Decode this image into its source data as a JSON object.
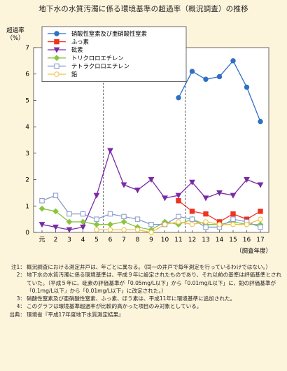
{
  "title": "地下水の水質汚濁に係る環境基準の超過率（概況調査）の推移",
  "chart_data": {
    "type": "line",
    "ylabel": "超過率\n（%）",
    "xlabel": "（調査年度）",
    "ylim": [
      0,
      7
    ],
    "yticks": [
      0,
      1,
      2,
      3,
      4,
      5,
      6,
      7
    ],
    "categories": [
      "元",
      "2",
      "3",
      "4",
      "5",
      "6",
      "7",
      "8",
      "9",
      "10",
      "11",
      "12",
      "13",
      "14",
      "15",
      "16",
      "17"
    ],
    "dashed_lines_after_category": [
      "5",
      "11"
    ],
    "grid": false,
    "legend_position": "top-right",
    "series": [
      {
        "name": "硝酸性窒素及び亜硝酸性窒素",
        "color": "#2f6fc4",
        "marker": "circle-filled",
        "values": [
          null,
          null,
          null,
          null,
          null,
          null,
          null,
          null,
          null,
          null,
          5.1,
          6.1,
          5.8,
          5.9,
          6.5,
          5.5,
          4.2
        ]
      },
      {
        "name": "ふっ素",
        "color": "#ee3322",
        "marker": "square-filled",
        "values": [
          null,
          null,
          null,
          null,
          null,
          null,
          null,
          null,
          null,
          null,
          1.2,
          0.8,
          0.7,
          0.4,
          0.7,
          0.5,
          0.8
        ]
      },
      {
        "name": "砒素",
        "color": "#7a2aa5",
        "marker": "triangle-down-filled",
        "values": [
          0.3,
          0.2,
          0.1,
          0.2,
          1.4,
          3.1,
          1.8,
          1.6,
          2.0,
          1.3,
          1.4,
          1.9,
          1.3,
          1.5,
          1.4,
          2.0,
          1.8
        ]
      },
      {
        "name": "トリクロロエチレン",
        "color": "#8bc53f",
        "marker": "diamond-filled",
        "values": [
          0.9,
          0.8,
          0.4,
          0.4,
          0.3,
          0.3,
          0.4,
          0.2,
          0.1,
          0.4,
          0.3,
          0.5,
          0.3,
          0.3,
          0.4,
          0.3,
          0.3
        ]
      },
      {
        "name": "テトラクロロエチレン",
        "color": "#8899cc",
        "marker": "square-open",
        "values": [
          1.2,
          1.4,
          0.7,
          0.7,
          0.5,
          0.7,
          0.6,
          0.5,
          0.3,
          0.3,
          0.6,
          0.5,
          0.2,
          0.2,
          0.5,
          0.4,
          0.2
        ]
      },
      {
        "name": "鉛",
        "color": "#f0c040",
        "marker": "circle-open",
        "values": [
          null,
          null,
          null,
          null,
          0.1,
          0.1,
          0.1,
          0.1,
          0.0,
          0.3,
          0.4,
          0.3,
          0.4,
          0.3,
          0.3,
          0.3,
          0.5
        ]
      }
    ]
  },
  "notes": [
    {
      "label": "注1：",
      "text": "概況調査における測定井戸は、年ごとに異なる。（同一の井戸で毎年測定を行っているわけではない。）"
    },
    {
      "label": "2：",
      "text": "地下水の水質汚濁に係る環境基準は、平成９年に設定されたものであり、それ以前の基準は評価基準とされていた。（平成５年に、砒素の評価基準が「0.05mg/L以下」から「0.01mg/L以下」に、鉛の評価基準が「0.1mg/L以下」から「0.01mg/L以下」に改定された。）"
    },
    {
      "label": "3：",
      "text": "硝酸性窒素及び亜硝酸性窒素、ふっ素、ほう素は、平成11年に環境基準に追加された。"
    },
    {
      "label": "4：",
      "text": "このグラフは環境基準超過率が比較的高かった項目のみ対象としている。"
    },
    {
      "label": "出典：",
      "text": "環境省『平成17年度地下水質測定結果』"
    }
  ]
}
